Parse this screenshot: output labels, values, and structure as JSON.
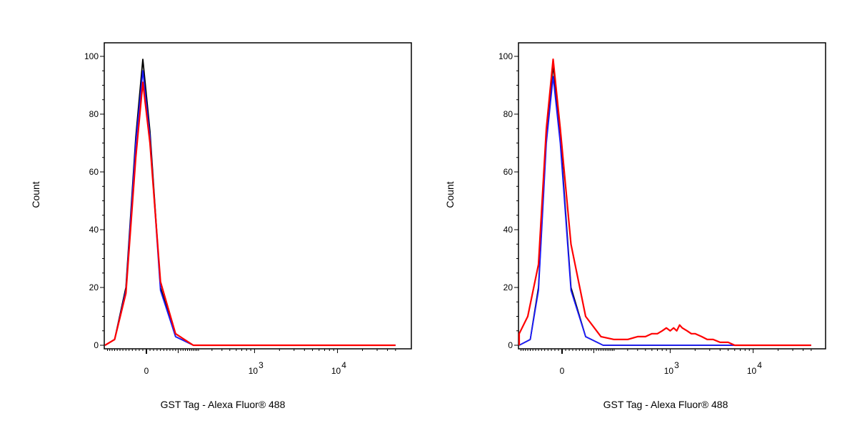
{
  "chart_data": [
    {
      "type": "line",
      "xlabel": "GST Tag - Alexa Fluor® 488",
      "ylabel": "Count",
      "ylim": [
        0,
        100
      ],
      "y_ticks": [
        0,
        20,
        40,
        60,
        80,
        100
      ],
      "x_scale": "biexponential",
      "x_ticks": [
        {
          "label": "0",
          "pos": 0
        },
        {
          "label": "10",
          "sup": "3",
          "pos": 1000
        },
        {
          "label": "10",
          "sup": "4",
          "pos": 10000
        }
      ],
      "grid": false,
      "series": [
        {
          "color": "#000000",
          "points": [
            [
              -160,
              0
            ],
            [
              -100,
              2
            ],
            [
              -60,
              20
            ],
            [
              -30,
              72
            ],
            [
              -10,
              99
            ],
            [
              10,
              74
            ],
            [
              40,
              20
            ],
            [
              90,
              3
            ],
            [
              170,
              0
            ],
            [
              50000,
              0
            ]
          ]
        },
        {
          "color": "#1a1aff",
          "points": [
            [
              -160,
              0
            ],
            [
              -100,
              2
            ],
            [
              -60,
              19
            ],
            [
              -30,
              70
            ],
            [
              -10,
              95
            ],
            [
              10,
              72
            ],
            [
              40,
              19
            ],
            [
              90,
              3
            ],
            [
              170,
              0
            ],
            [
              50000,
              0
            ]
          ]
        },
        {
          "color": "#ff0000",
          "points": [
            [
              -160,
              0
            ],
            [
              -100,
              2
            ],
            [
              -60,
              18
            ],
            [
              -30,
              65
            ],
            [
              -10,
              91
            ],
            [
              10,
              70
            ],
            [
              40,
              22
            ],
            [
              90,
              4
            ],
            [
              170,
              0
            ],
            [
              50000,
              0
            ]
          ]
        }
      ]
    },
    {
      "type": "line",
      "xlabel": "GST Tag - Alexa Fluor® 488",
      "ylabel": "Count",
      "ylim": [
        0,
        100
      ],
      "y_ticks": [
        0,
        20,
        40,
        60,
        80,
        100
      ],
      "x_scale": "biexponential",
      "x_ticks": [
        {
          "label": "0",
          "pos": 0
        },
        {
          "label": "10",
          "sup": "3",
          "pos": 1000
        },
        {
          "label": "10",
          "sup": "4",
          "pos": 10000
        }
      ],
      "grid": false,
      "series": [
        {
          "color": "#000000",
          "points": [
            [
              -160,
              0
            ],
            [
              -100,
              2
            ],
            [
              -70,
              20
            ],
            [
              -45,
              72
            ],
            [
              -25,
              97
            ],
            [
              -5,
              72
            ],
            [
              25,
              20
            ],
            [
              70,
              3
            ],
            [
              140,
              0
            ],
            [
              50000,
              0
            ]
          ]
        },
        {
          "color": "#1a1aff",
          "points": [
            [
              -160,
              0
            ],
            [
              -100,
              2
            ],
            [
              -70,
              19
            ],
            [
              -45,
              70
            ],
            [
              -25,
              93
            ],
            [
              -5,
              70
            ],
            [
              25,
              19
            ],
            [
              70,
              3
            ],
            [
              140,
              0
            ],
            [
              50000,
              0
            ]
          ]
        },
        {
          "color": "#ff0000",
          "points": [
            [
              -400,
              0
            ],
            [
              -250,
              1
            ],
            [
              -160,
              4
            ],
            [
              -110,
              10
            ],
            [
              -70,
              28
            ],
            [
              -45,
              75
            ],
            [
              -25,
              99
            ],
            [
              -5,
              75
            ],
            [
              25,
              35
            ],
            [
              70,
              10
            ],
            [
              130,
              3
            ],
            [
              200,
              2
            ],
            [
              300,
              2
            ],
            [
              400,
              3
            ],
            [
              500,
              3
            ],
            [
              600,
              4
            ],
            [
              700,
              4
            ],
            [
              800,
              5
            ],
            [
              900,
              6
            ],
            [
              1000,
              5
            ],
            [
              1100,
              6
            ],
            [
              1200,
              5
            ],
            [
              1300,
              7
            ],
            [
              1400,
              6
            ],
            [
              1600,
              5
            ],
            [
              1800,
              4
            ],
            [
              2000,
              4
            ],
            [
              2400,
              3
            ],
            [
              2800,
              2
            ],
            [
              3300,
              2
            ],
            [
              4000,
              1
            ],
            [
              5000,
              1
            ],
            [
              6000,
              0
            ],
            [
              8000,
              0
            ],
            [
              50000,
              0
            ]
          ]
        }
      ]
    }
  ]
}
